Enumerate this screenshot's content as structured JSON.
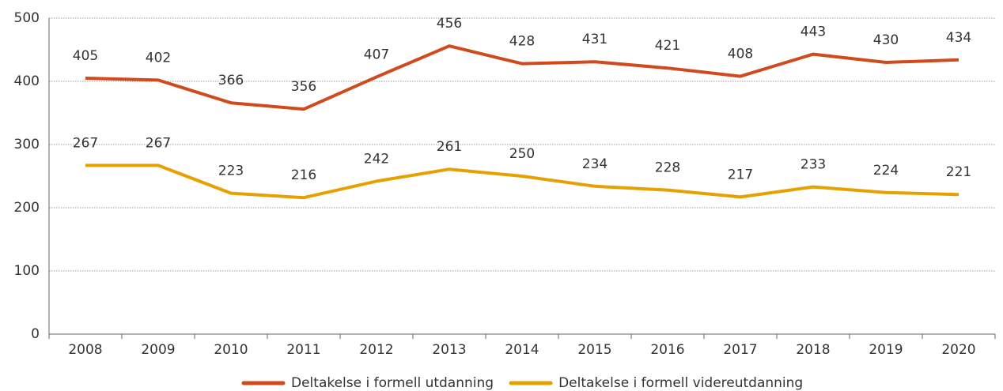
{
  "chart_data": {
    "type": "line",
    "categories": [
      "2008",
      "2009",
      "2010",
      "2011",
      "2012",
      "2013",
      "2014",
      "2015",
      "2016",
      "2017",
      "2018",
      "2019",
      "2020"
    ],
    "series": [
      {
        "name": "Deltakelse i formell utdanning",
        "color": "#d04a1e",
        "values": [
          405,
          402,
          366,
          356,
          407,
          456,
          428,
          431,
          421,
          408,
          443,
          430,
          434
        ]
      },
      {
        "name": "Deltakelse i formell videreutdanning",
        "color": "#e6a100",
        "values": [
          267,
          267,
          223,
          216,
          242,
          261,
          250,
          234,
          228,
          217,
          233,
          224,
          221
        ]
      }
    ],
    "ylim": [
      0,
      500
    ],
    "yticks": [
      0,
      100,
      200,
      300,
      400,
      500
    ],
    "grid": true,
    "legend": "bottom"
  }
}
